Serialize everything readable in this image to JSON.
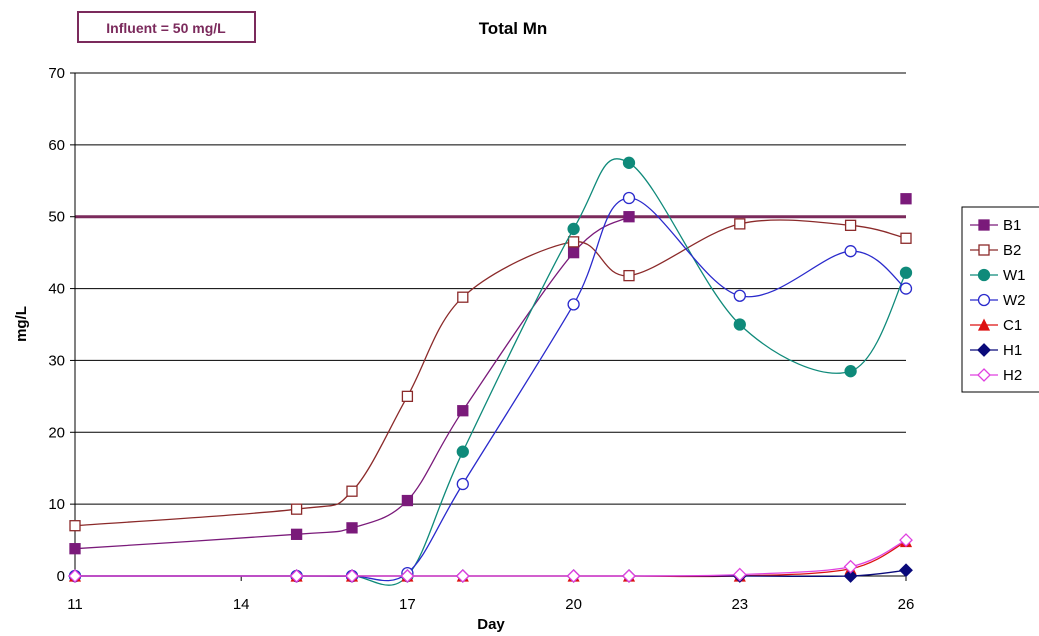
{
  "chart_data": {
    "type": "line",
    "title": "Total Mn",
    "xlabel": "Day",
    "ylabel": "mg/L",
    "xlim": [
      11,
      26
    ],
    "ylim": [
      0,
      70
    ],
    "xticks": [
      "11",
      "14",
      "17",
      "20",
      "23",
      "26"
    ],
    "yticks": [
      "0",
      "10",
      "20",
      "30",
      "40",
      "50",
      "60",
      "70"
    ],
    "grid": "horizontal",
    "legend_position": "right",
    "annotation": {
      "text": "Influent = 50 mg/L",
      "reference_value": 50,
      "color": "#7b2a5c"
    },
    "series": [
      {
        "name": "B1",
        "color": "#7a1a7a",
        "marker": "square-filled",
        "smooth": true,
        "x": [
          11,
          15,
          16,
          17,
          18,
          20,
          21,
          26
        ],
        "y": [
          3.8,
          5.8,
          6.7,
          10.5,
          23,
          45,
          50,
          52.5
        ],
        "line_points": 7
      },
      {
        "name": "B2",
        "color": "#8b2a2a",
        "marker": "square-open",
        "smooth": true,
        "x": [
          11,
          15,
          16,
          17,
          18,
          20,
          21,
          23,
          25,
          26
        ],
        "y": [
          7,
          9.3,
          11.8,
          25,
          38.8,
          46.5,
          41.8,
          49,
          48.8,
          47
        ]
      },
      {
        "name": "W1",
        "color": "#0f8a7a",
        "marker": "circle-filled",
        "smooth": true,
        "x": [
          11,
          15,
          16,
          17,
          18,
          20,
          21,
          23,
          25,
          26
        ],
        "y": [
          0,
          0,
          0,
          0,
          17.3,
          48.3,
          57.5,
          35,
          28.5,
          42.2
        ]
      },
      {
        "name": "W2",
        "color": "#2a2acc",
        "marker": "circle-open",
        "smooth": true,
        "x": [
          11,
          15,
          16,
          17,
          18,
          20,
          21,
          23,
          25,
          26
        ],
        "y": [
          0,
          0,
          0,
          0.4,
          12.8,
          37.8,
          52.6,
          39,
          45.2,
          40
        ]
      },
      {
        "name": "C1",
        "color": "#dd1111",
        "marker": "triangle-filled",
        "smooth": true,
        "x": [
          11,
          15,
          16,
          17,
          18,
          20,
          21,
          23,
          25,
          26
        ],
        "y": [
          0,
          0,
          0,
          0,
          0,
          0,
          0,
          0,
          1,
          4.8
        ]
      },
      {
        "name": "H1",
        "color": "#0a0a7a",
        "marker": "diamond-filled",
        "smooth": true,
        "x": [
          11,
          15,
          16,
          17,
          18,
          20,
          21,
          23,
          25,
          26
        ],
        "y": [
          0,
          0,
          0,
          0,
          0,
          0,
          0,
          0,
          0,
          0.8
        ]
      },
      {
        "name": "H2",
        "color": "#e040e0",
        "marker": "diamond-open",
        "smooth": true,
        "x": [
          11,
          15,
          16,
          17,
          18,
          20,
          21,
          23,
          25,
          26
        ],
        "y": [
          0,
          0,
          0,
          0,
          0,
          0,
          0,
          0.2,
          1.3,
          5
        ]
      }
    ]
  }
}
